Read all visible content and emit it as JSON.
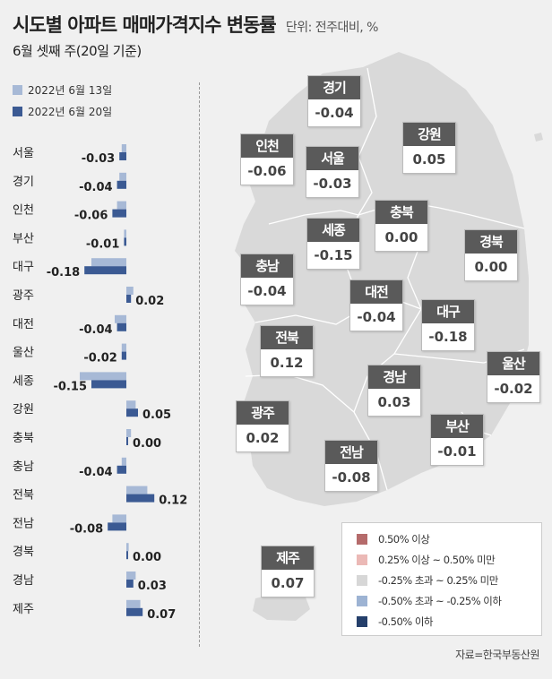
{
  "title": "시도별 아파트 매매가격지수 변동률",
  "unit": "단위: 전주대비, %",
  "subtitle": "6월 셋째 주(20일 기준)",
  "source": "자료=한국부동산원",
  "colors": {
    "series_prev": "#a7b9d6",
    "series_curr": "#3b5a93",
    "map_land": "#d9d9d9",
    "map_border": "#ffffff"
  },
  "chart_data": {
    "type": "bar",
    "orientation": "horizontal",
    "categories": [
      "서울",
      "경기",
      "인천",
      "부산",
      "대구",
      "광주",
      "대전",
      "울산",
      "세종",
      "강원",
      "충북",
      "충남",
      "전북",
      "전남",
      "경북",
      "경남",
      "제주"
    ],
    "series": [
      {
        "name": "2022년 6월 13일",
        "values": [
          -0.02,
          -0.03,
          -0.04,
          -0.01,
          -0.15,
          0.03,
          -0.05,
          -0.02,
          -0.2,
          0.04,
          0.02,
          -0.02,
          0.09,
          -0.06,
          0.01,
          0.04,
          0.06
        ]
      },
      {
        "name": "2022년 6월 20일",
        "values": [
          -0.03,
          -0.04,
          -0.06,
          -0.01,
          -0.18,
          0.02,
          -0.04,
          -0.02,
          -0.15,
          0.05,
          0.0,
          -0.04,
          0.12,
          -0.08,
          0.0,
          0.03,
          0.07
        ]
      }
    ],
    "value_labels": [
      "-0.03",
      "-0.04",
      "-0.06",
      "-0.01",
      "-0.18",
      "0.02",
      "-0.04",
      "-0.02",
      "-0.15",
      "0.05",
      "0.00",
      "-0.04",
      "0.12",
      "-0.08",
      "0.00",
      "0.03",
      "0.07"
    ]
  },
  "map": {
    "regions": [
      {
        "name": "경기",
        "value": "-0.04"
      },
      {
        "name": "인천",
        "value": "-0.06"
      },
      {
        "name": "서울",
        "value": "-0.03"
      },
      {
        "name": "강원",
        "value": "0.05"
      },
      {
        "name": "충북",
        "value": "0.00"
      },
      {
        "name": "세종",
        "value": "-0.15"
      },
      {
        "name": "경북",
        "value": "0.00"
      },
      {
        "name": "충남",
        "value": "-0.04"
      },
      {
        "name": "대전",
        "value": "-0.04"
      },
      {
        "name": "대구",
        "value": "-0.18"
      },
      {
        "name": "전북",
        "value": "0.12"
      },
      {
        "name": "경남",
        "value": "0.03"
      },
      {
        "name": "울산",
        "value": "-0.02"
      },
      {
        "name": "광주",
        "value": "0.02"
      },
      {
        "name": "부산",
        "value": "-0.01"
      },
      {
        "name": "전남",
        "value": "-0.08"
      },
      {
        "name": "제주",
        "value": "0.07"
      }
    ],
    "legend": [
      {
        "label": "0.50% 이상",
        "color": "#b56b6b"
      },
      {
        "label": "0.25% 이상 ~ 0.50% 미만",
        "color": "#ebb9b6"
      },
      {
        "label": "-0.25% 초과 ~ 0.25% 미만",
        "color": "#d7d7d7"
      },
      {
        "label": "-0.50% 초과 ~ -0.25% 이하",
        "color": "#9db3d3"
      },
      {
        "label": "-0.50% 이하",
        "color": "#253f6b"
      }
    ]
  }
}
